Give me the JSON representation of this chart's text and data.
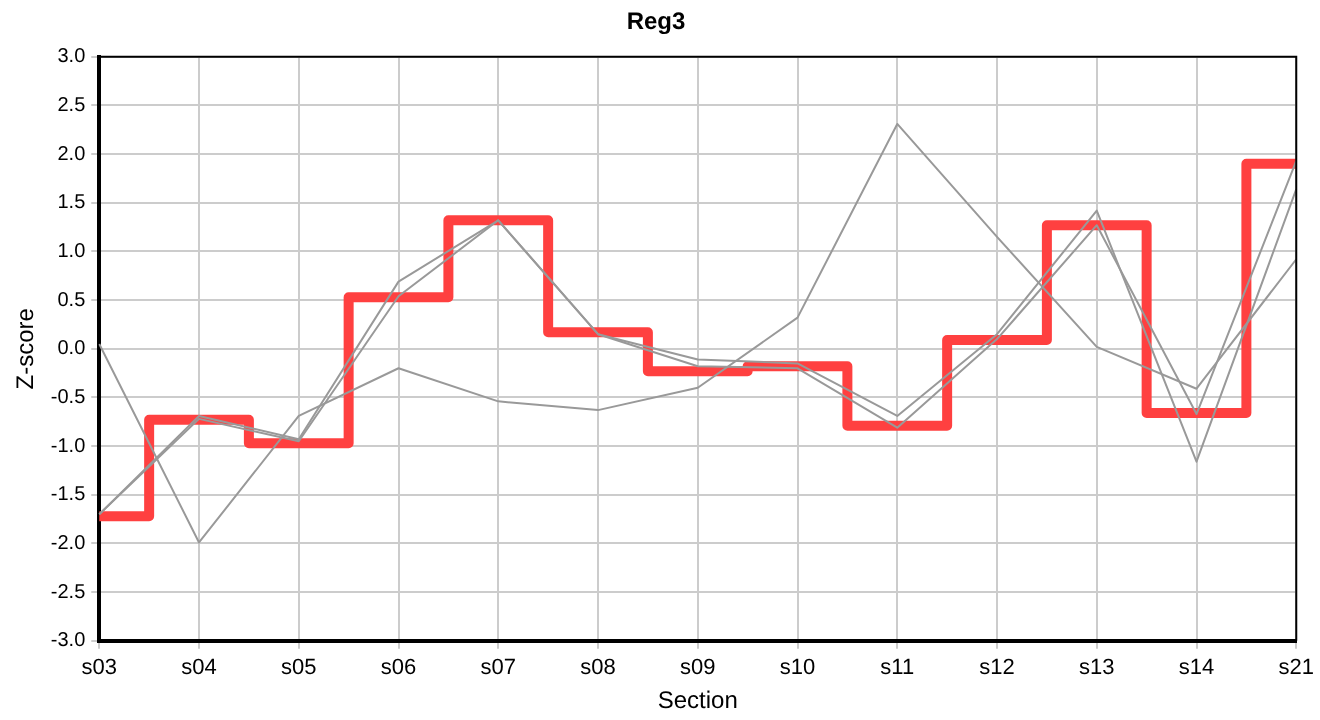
{
  "chart_data": {
    "type": "line",
    "title": "Reg3",
    "xlabel": "Section",
    "ylabel": "Z-score",
    "categories": [
      "s03",
      "s04",
      "s05",
      "s06",
      "s07",
      "s08",
      "s09",
      "s10",
      "s11",
      "s12",
      "s13",
      "s14",
      "s21"
    ],
    "series": [
      {
        "color": "#999999",
        "values": [
          0.05,
          -1.99,
          -0.69,
          -0.2,
          -0.54,
          -0.63,
          -0.4,
          0.32,
          2.31,
          1.15,
          0.02,
          -0.41,
          0.92
        ]
      },
      {
        "color": "#999999",
        "values": [
          -1.7,
          -0.69,
          -0.93,
          0.69,
          1.32,
          0.15,
          -0.11,
          -0.15,
          -0.69,
          0.15,
          1.42,
          -1.16,
          1.64
        ]
      },
      {
        "color": "#999999",
        "values": [
          -1.7,
          -0.72,
          -0.95,
          0.54,
          1.32,
          0.15,
          -0.18,
          -0.2,
          -0.81,
          0.1,
          1.27,
          -0.67,
          1.93
        ]
      },
      {
        "type": "step",
        "color": "#ff4040",
        "values": [
          -1.72,
          -0.73,
          -0.97,
          0.53,
          1.32,
          0.17,
          -0.23,
          -0.18,
          -0.79,
          0.09,
          1.27,
          -0.66,
          1.9
        ]
      }
    ],
    "ylim": [
      -3,
      3
    ],
    "yticks": [
      {
        "value": -3,
        "label": "-3.0"
      },
      -2.5,
      {
        "value": -2,
        "label": "-2.0"
      },
      -1.5,
      {
        "value": -1,
        "label": "-1.0"
      },
      -0.5,
      {
        "value": 0,
        "label": "0.0"
      },
      0.5,
      {
        "value": 1,
        "label": "1.0"
      },
      1.5,
      {
        "value": 2,
        "label": "2.0"
      },
      2.5,
      {
        "value": 3,
        "label": "3.0"
      }
    ],
    "grid": true,
    "legend": false,
    "marker": "none",
    "line_style": "solid"
  }
}
